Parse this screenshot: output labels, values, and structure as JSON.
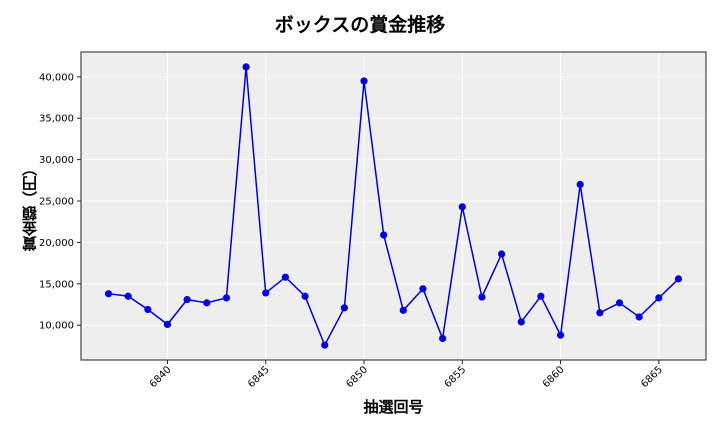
{
  "chart_data": {
    "type": "line",
    "title": "ボックスの賞金推移",
    "xlabel": "抽選回号",
    "ylabel": "賞金額（円）",
    "x": [
      6837,
      6838,
      6839,
      6840,
      6841,
      6842,
      6843,
      6844,
      6845,
      6846,
      6847,
      6848,
      6849,
      6850,
      6851,
      6852,
      6853,
      6854,
      6855,
      6856,
      6857,
      6858,
      6859,
      6860,
      6861,
      6862,
      6863,
      6864,
      6865,
      6866
    ],
    "series": [
      {
        "name": "ボックス",
        "color": "#0000dd",
        "values": [
          13800,
          13500,
          11900,
          10100,
          13100,
          12700,
          13300,
          41200,
          13900,
          15800,
          13500,
          7600,
          12100,
          39500,
          20900,
          11800,
          14400,
          8400,
          24300,
          13400,
          18600,
          10400,
          13500,
          8800,
          27000,
          11500,
          12700,
          11000,
          13300,
          15600
        ]
      }
    ],
    "xticks": [
      6840,
      6845,
      6850,
      6855,
      6860,
      6865
    ],
    "yticks": [
      10000,
      15000,
      20000,
      25000,
      30000,
      35000,
      40000
    ],
    "ytick_labels": [
      "10,000",
      "15,000",
      "20,000",
      "25,000",
      "30,000",
      "35,000",
      "40,000"
    ],
    "xlim": [
      6835.6,
      6867.4
    ],
    "ylim": [
      5800,
      43000
    ],
    "grid": true,
    "legend": "none",
    "plot_background": "#eeeeee"
  }
}
